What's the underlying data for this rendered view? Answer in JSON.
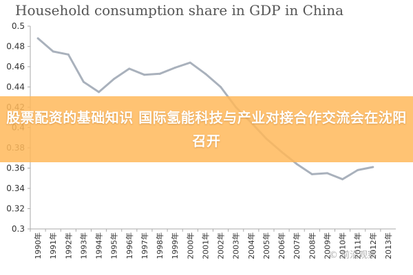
{
  "chart_data": {
    "type": "line",
    "title": "Household consumption share in GDP in China",
    "xlabel": "",
    "ylabel": "",
    "ylim": [
      0.3,
      0.5
    ],
    "yticks": [
      "0.5",
      "0.48",
      "0.46",
      "0.44",
      "0.42",
      "0.4",
      "0.38",
      "0.36",
      "0.34",
      "0.32",
      "0.3"
    ],
    "categories": [
      "1990年",
      "1991年",
      "1992年",
      "1993年",
      "1994年",
      "1995年",
      "1996年",
      "1997年",
      "1998年",
      "1999年",
      "2000年",
      "2001年",
      "2002年",
      "2003年",
      "2004年",
      "2005年",
      "2006年",
      "2007年",
      "2008年",
      "2009年",
      "2010年",
      "2011年",
      "2012年",
      "2013年"
    ],
    "series": [
      {
        "values": [
          0.488,
          0.475,
          0.472,
          0.445,
          0.435,
          0.448,
          0.458,
          0.452,
          0.453,
          0.459,
          0.464,
          0.453,
          0.44,
          0.42,
          0.405,
          0.389,
          0.376,
          0.364,
          0.354,
          0.355,
          0.349,
          0.358,
          0.361,
          null
        ]
      }
    ],
    "grid": false,
    "line_color": "#a9b1bc",
    "axis_color": "#aaaaaa"
  },
  "banner": {
    "text": "股票配资的基础知识 国际氢能科技与产业对接合作交流会在沈阳召开",
    "color": "#ffb95a"
  },
  "watermark": {
    "text": "© 前沿观察"
  }
}
